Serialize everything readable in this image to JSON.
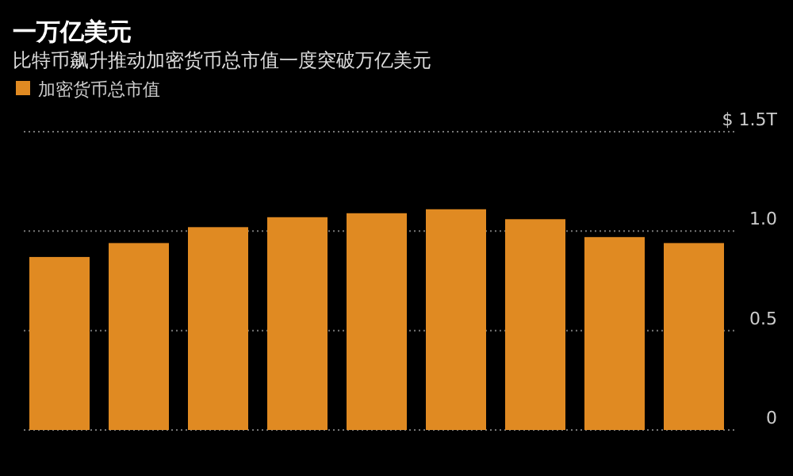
{
  "chart_data": {
    "type": "bar",
    "title": "一万亿美元",
    "subtitle": "比特币飙升推动加密货币总市值一度突破万亿美元",
    "categories": [
      null,
      null,
      null,
      null,
      null,
      null,
      null,
      null,
      null
    ],
    "series": [
      {
        "name": "加密货币总市值",
        "color": "#e08a22",
        "values": [
          0.87,
          0.94,
          1.02,
          1.07,
          1.09,
          1.11,
          1.06,
          0.97,
          0.94
        ]
      }
    ],
    "ylim": [
      0,
      1.5
    ],
    "yticks": [
      0,
      0.5,
      {
        "value": 1,
        "label": "1.0"
      },
      {
        "value": 1.5,
        "label": "$ 1.5T"
      }
    ],
    "grid": "y",
    "legend": "top left"
  }
}
